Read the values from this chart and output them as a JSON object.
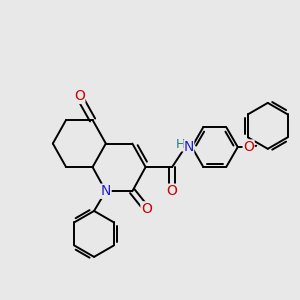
{
  "bg_color": "#e8e8e8",
  "bond_color": "#000000",
  "bond_width": 1.4,
  "atom_colors": {
    "N": "#2020cc",
    "O": "#cc0000",
    "H": "#208080",
    "C": "#000000"
  },
  "font_size": 10
}
